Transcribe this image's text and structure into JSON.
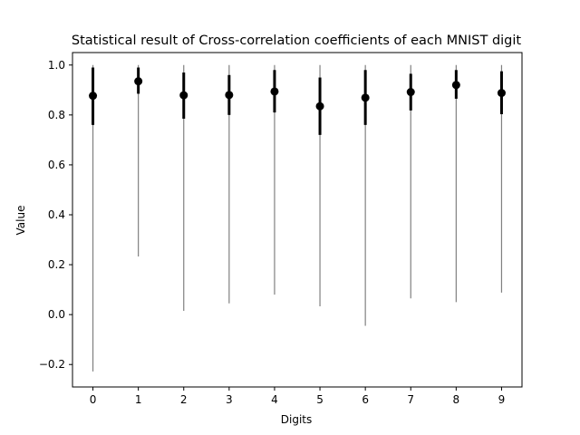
{
  "chart_data": {
    "type": "errorbar",
    "title": "Statistical result of Cross-correlation coefficients of each MNIST digit",
    "xlabel": "Digits",
    "ylabel": "Value",
    "x_ticks": [
      "0",
      "1",
      "2",
      "3",
      "4",
      "5",
      "6",
      "7",
      "8",
      "9"
    ],
    "y_ticks": [
      "−0.2",
      "0.0",
      "0.2",
      "0.4",
      "0.6",
      "0.8",
      "1.0"
    ],
    "y_tick_values": [
      -0.2,
      0.0,
      0.2,
      0.4,
      0.6,
      0.8,
      1.0
    ],
    "ylim": [
      -0.29,
      1.05
    ],
    "xlim": [
      -0.45,
      9.45
    ],
    "grid": false,
    "legend": "none",
    "colors": {
      "mean_marker": "#000000",
      "std_bar": "#000000",
      "range_line": "#808080"
    },
    "categories": [
      0,
      1,
      2,
      3,
      4,
      5,
      6,
      7,
      8,
      9
    ],
    "series": [
      {
        "mean": [
          0.877,
          0.935,
          0.879,
          0.88,
          0.894,
          0.835,
          0.869,
          0.892,
          0.92,
          0.888
        ],
        "std_low": [
          0.76,
          0.885,
          0.785,
          0.8,
          0.81,
          0.72,
          0.76,
          0.818,
          0.865,
          0.803
        ],
        "std_high": [
          0.99,
          0.99,
          0.97,
          0.96,
          0.98,
          0.95,
          0.98,
          0.965,
          0.98,
          0.975
        ],
        "min": [
          -0.228,
          0.233,
          0.015,
          0.045,
          0.08,
          0.033,
          -0.045,
          0.065,
          0.05,
          0.088
        ],
        "max": [
          1.0,
          1.0,
          1.0,
          1.0,
          1.0,
          1.0,
          1.0,
          1.0,
          1.0,
          1.0
        ]
      }
    ]
  }
}
